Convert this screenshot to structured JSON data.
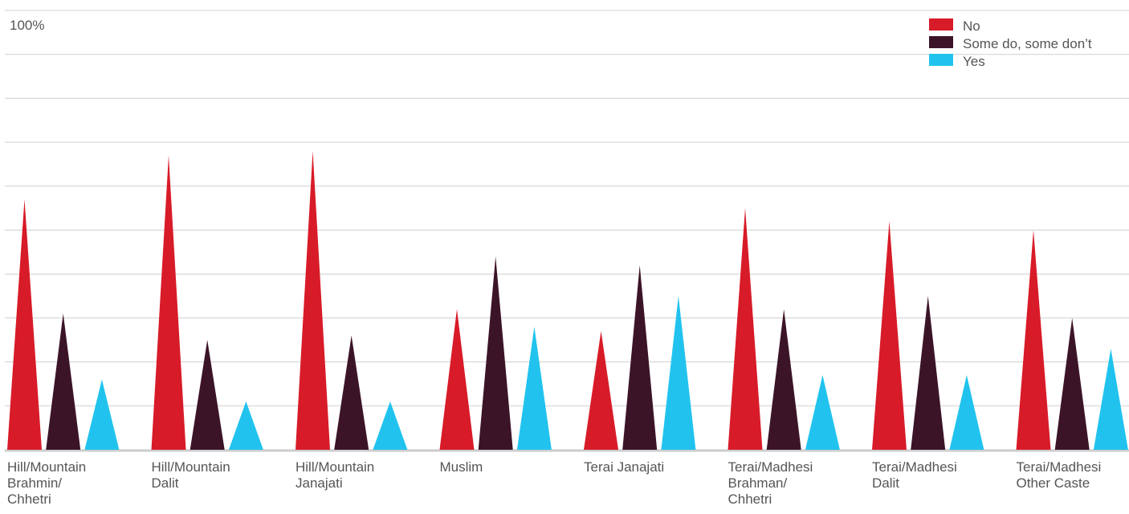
{
  "chart_data": {
    "type": "bar",
    "bar_shape": "triangle",
    "y_top_label": "100%",
    "ylim": [
      0,
      100
    ],
    "grid": true,
    "gridline_count": 10,
    "legend_placement": "top-right",
    "categories": [
      [
        "Hill/Mountain",
        "Brahmin/",
        "Chhetri"
      ],
      [
        "Hill/Mountain",
        "Dalit"
      ],
      [
        "Hill/Mountain",
        "Janajati"
      ],
      [
        "Muslim"
      ],
      [
        "Terai Janajati"
      ],
      [
        "Terai/Madhesi",
        "Brahman/",
        "Chhetri"
      ],
      [
        "Terai/Madhesi",
        "Dalit"
      ],
      [
        "Terai/Madhesi",
        "Other Caste"
      ]
    ],
    "series": [
      {
        "name": "No",
        "color": "#d81b28",
        "values": [
          57,
          67,
          68,
          32,
          27,
          55,
          52,
          50
        ]
      },
      {
        "name": "Some do, some don’t",
        "color": "#3c1428",
        "values": [
          31,
          25,
          26,
          44,
          42,
          32,
          35,
          30
        ]
      },
      {
        "name": "Yes",
        "color": "#21c3ee",
        "values": [
          16,
          11,
          11,
          28,
          35,
          17,
          17,
          23
        ]
      }
    ]
  }
}
